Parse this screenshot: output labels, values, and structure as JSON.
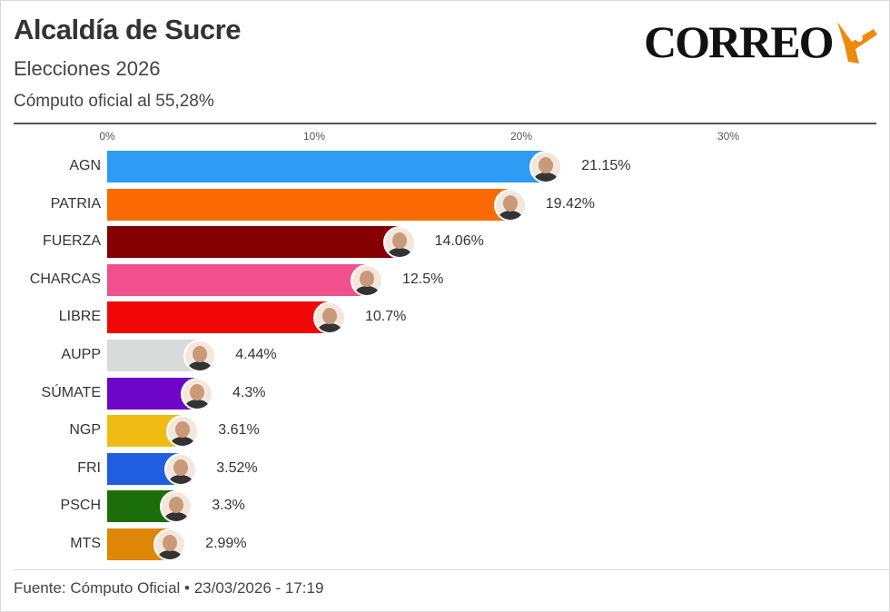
{
  "header": {
    "title": "Alcaldía de Sucre",
    "subtitle": "Elecciones 2026",
    "note": "Cómputo oficial al 55,28%",
    "logo": "CORREO"
  },
  "footer": {
    "source": "Fuente: Cómputo Oficial • 23/03/2026 - 17:19"
  },
  "chart_data": {
    "type": "bar",
    "orientation": "horizontal",
    "xlim": [
      0,
      36
    ],
    "ticks": [
      {
        "value": 0,
        "label": "0%"
      },
      {
        "value": 10,
        "label": "10%"
      },
      {
        "value": 20,
        "label": "20%"
      },
      {
        "value": 30,
        "label": "30%"
      }
    ],
    "categories": [
      "AGN",
      "PATRIA",
      "FUERZA",
      "CHARCAS",
      "LIBRE",
      "AUPP",
      "SÚMATE",
      "NGP",
      "FRI",
      "PSCH",
      "MTS"
    ],
    "values": [
      21.15,
      19.42,
      14.06,
      12.5,
      10.7,
      4.44,
      4.3,
      3.61,
      3.52,
      3.3,
      2.99
    ],
    "value_labels": [
      "21.15%",
      "19.42%",
      "14.06%",
      "12.5%",
      "10.7%",
      "4.44%",
      "4.3%",
      "3.61%",
      "3.52%",
      "3.3%",
      "2.99%"
    ],
    "colors": [
      "#2e9bf5",
      "#fb6a03",
      "#850000",
      "#f0508c",
      "#f20707",
      "#d9dadb",
      "#6e05c8",
      "#f0bc14",
      "#1f5fdf",
      "#1c6e0b",
      "#de8605"
    ]
  }
}
